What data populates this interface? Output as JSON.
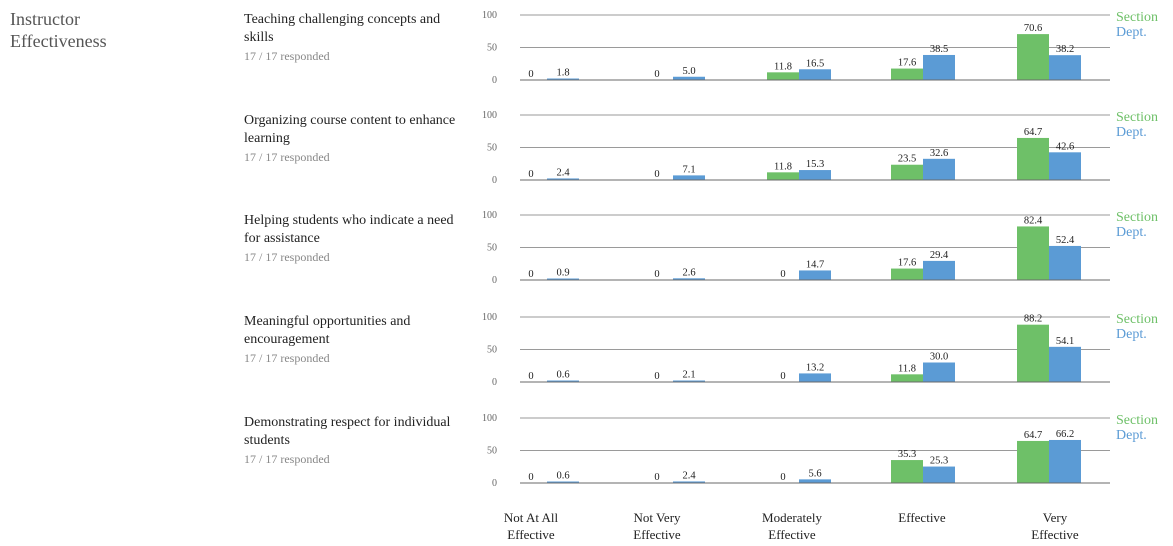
{
  "section": {
    "title_line1": "Instructor",
    "title_line2": "Effectiveness"
  },
  "colors": {
    "section": "#6ec068",
    "dept": "#5b9bd5"
  },
  "chart_data": {
    "type": "bar",
    "categories": [
      [
        "Not At All",
        "Effective"
      ],
      [
        "Not Very",
        "Effective"
      ],
      [
        "Moderately",
        "Effective"
      ],
      [
        "Effective"
      ],
      [
        "Very",
        "Effective"
      ]
    ],
    "legend": [
      "Section",
      "Dept."
    ],
    "y_ticks": [
      "100",
      "50",
      "0"
    ],
    "ylim": [
      0,
      100
    ],
    "questions": [
      {
        "title": "Teaching challenging concepts and skills",
        "responded": "17 / 17 responded",
        "section": [
          0,
          0,
          11.8,
          17.6,
          70.6
        ],
        "dept": [
          1.8,
          5.0,
          16.5,
          38.5,
          38.2
        ],
        "section_labels": [
          "0",
          "0",
          "11.8",
          "17.6",
          "70.6"
        ],
        "dept_labels": [
          "1.8",
          "5.0",
          "16.5",
          "38.5",
          "38.2"
        ]
      },
      {
        "title": "Organizing course content to enhance learning",
        "responded": "17 / 17 responded",
        "section": [
          0,
          0,
          11.8,
          23.5,
          64.7
        ],
        "dept": [
          2.4,
          7.1,
          15.3,
          32.6,
          42.6
        ],
        "section_labels": [
          "0",
          "0",
          "11.8",
          "23.5",
          "64.7"
        ],
        "dept_labels": [
          "2.4",
          "7.1",
          "15.3",
          "32.6",
          "42.6"
        ]
      },
      {
        "title": "Helping students who indicate a need for assistance",
        "responded": "17 / 17 responded",
        "section": [
          0,
          0,
          0,
          17.6,
          82.4
        ],
        "dept": [
          0.9,
          2.6,
          14.7,
          29.4,
          52.4
        ],
        "section_labels": [
          "0",
          "0",
          "0",
          "17.6",
          "82.4"
        ],
        "dept_labels": [
          "0.9",
          "2.6",
          "14.7",
          "29.4",
          "52.4"
        ]
      },
      {
        "title": "Meaningful opportunities and encouragement",
        "responded": "17 / 17 responded",
        "section": [
          0,
          0,
          0,
          11.8,
          88.2
        ],
        "dept": [
          0.6,
          2.1,
          13.2,
          30.0,
          54.1
        ],
        "section_labels": [
          "0",
          "0",
          "0",
          "11.8",
          "88.2"
        ],
        "dept_labels": [
          "0.6",
          "2.1",
          "13.2",
          "30.0",
          "54.1"
        ]
      },
      {
        "title": "Demonstrating respect for individual students",
        "responded": "17 / 17 responded",
        "section": [
          0,
          0,
          0,
          35.3,
          64.7
        ],
        "dept": [
          0.6,
          2.4,
          5.6,
          25.3,
          66.2
        ],
        "section_labels": [
          "0",
          "0",
          "0",
          "35.3",
          "64.7"
        ],
        "dept_labels": [
          "0.6",
          "2.4",
          "5.6",
          "25.3",
          "66.2"
        ]
      }
    ]
  }
}
